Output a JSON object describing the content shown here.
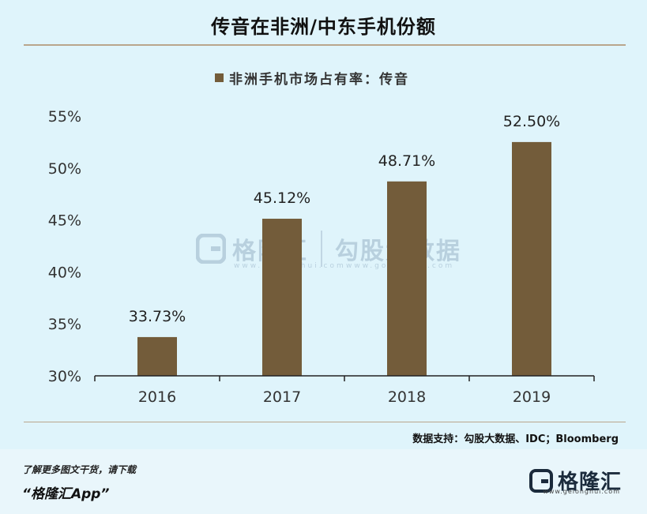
{
  "title": "传音在非洲/中东手机份额",
  "legend": "非洲手机市场占有率：传音",
  "source": "数据支持：勾股大数据、IDC；Bloomberg",
  "watermark": {
    "left_text": "格隆汇",
    "left_url": "www.gelonghui.com",
    "right_text": "勾股大数据",
    "right_url": "www.gogudata.com"
  },
  "footer": {
    "line1": "了解更多图文干货，请下载",
    "line2": "“格隆汇App”",
    "brand": "格隆汇",
    "brand_url": "www.gelonghui.com"
  },
  "colors": {
    "bar": "#735c3a",
    "background": "#dff4fb",
    "accent_line": "#b9a58c"
  },
  "chart_data": {
    "type": "bar",
    "categories": [
      "2016",
      "2017",
      "2018",
      "2019"
    ],
    "series": [
      {
        "name": "非洲手机市场占有率：传音",
        "values": [
          33.73,
          45.12,
          48.71,
          52.5
        ]
      }
    ],
    "data_labels": [
      "33.73%",
      "45.12%",
      "48.71%",
      "52.50%"
    ],
    "ylim": [
      30,
      55
    ],
    "yticks": [
      30,
      35,
      40,
      45,
      50,
      55
    ],
    "ytick_labels": [
      "30%",
      "35%",
      "40%",
      "45%",
      "50%",
      "55%"
    ],
    "grid": false,
    "legend_position": "top-center"
  }
}
